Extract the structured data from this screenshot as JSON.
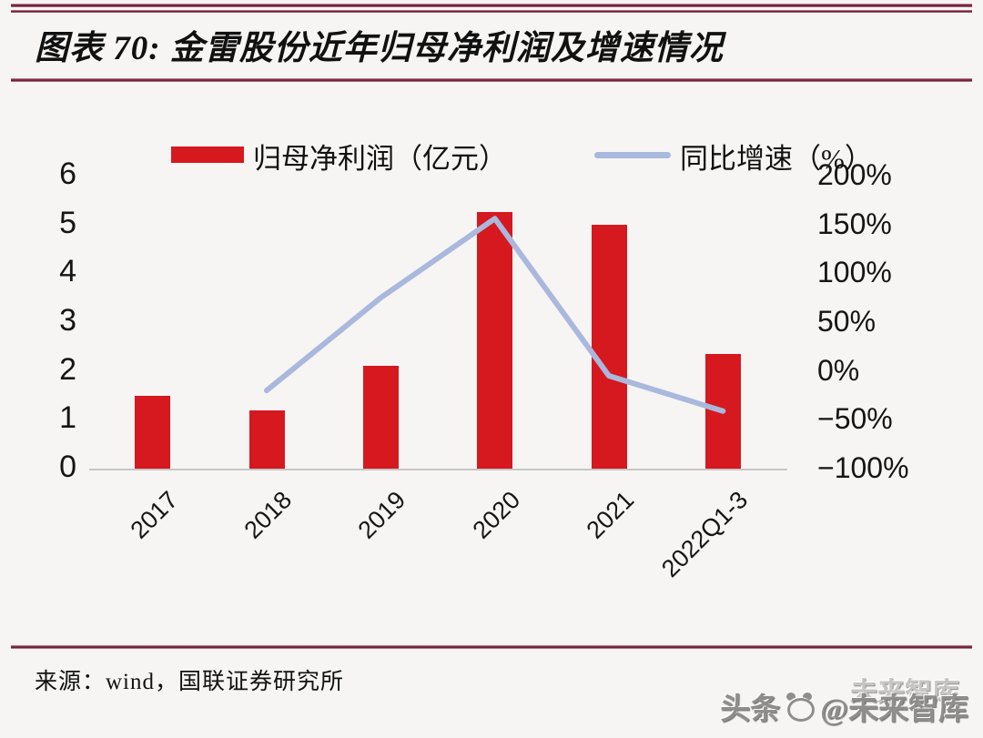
{
  "page": {
    "title": "图表 70: 金雷股份近年归母净利润及增速情况",
    "source": "来源：wind，国联证券研究所",
    "watermark": {
      "back_text": "未来智库",
      "front_left": "头条",
      "front_right": "@未来智库",
      "logo": "toutiao-panda-logo"
    }
  },
  "colors": {
    "bar_red": "#d6181f",
    "line_blue": "#a9b8dc",
    "rule_maroon": "#6d1f3a",
    "rule_pink": "#d9a0b4",
    "axis_gray": "#c6c6c6",
    "background": "#f6f5f4",
    "watermark_gray": "#8f8e8c"
  },
  "chart_data": {
    "type": "bar+line",
    "title": "金雷股份近年归母净利润及增速情况",
    "categories": [
      "2017",
      "2018",
      "2019",
      "2020",
      "2021",
      "2022Q1-3"
    ],
    "series": [
      {
        "name": "归母净利润（亿元）",
        "type": "bar",
        "axis": "left",
        "values": [
          1.5,
          1.2,
          2.1,
          5.25,
          5.0,
          2.35
        ]
      },
      {
        "name": "同比增速（%）",
        "type": "line",
        "axis": "right",
        "values": [
          null,
          -20,
          75,
          156,
          -5,
          -41
        ]
      }
    ],
    "left_axis": {
      "min": 0,
      "max": 6,
      "ticks": [
        6,
        5,
        4,
        3,
        2,
        1,
        0
      ]
    },
    "right_axis": {
      "min": -100,
      "max": 200,
      "ticks": [
        {
          "value": 200,
          "label": "200%"
        },
        {
          "value": 150,
          "label": "150%"
        },
        {
          "value": 100,
          "label": "100%"
        },
        {
          "value": 50,
          "label": "50%"
        },
        {
          "value": 0,
          "label": "0%"
        },
        {
          "value": -50,
          "label": "−50%"
        },
        {
          "value": -100,
          "label": "−100%"
        }
      ]
    },
    "legend_position": "top",
    "grid": false,
    "x_label_rotation_deg": -45
  }
}
